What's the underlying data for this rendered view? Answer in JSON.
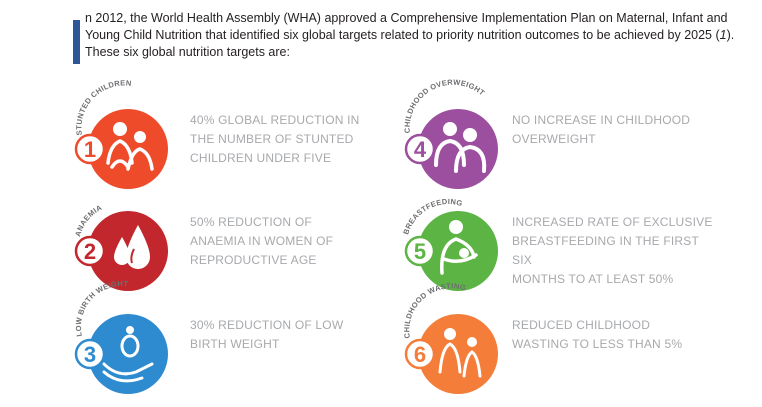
{
  "intro": {
    "text_1": "n 2012, the World Health Assembly (WHA) approved a Comprehensive Implementation Plan on Maternal, Infant and Young Child Nutrition that identified six global targets related to priority nutrition outcomes to be achieved by 2025 (",
    "ref": "1",
    "text_2": "). These six global nutrition targets are:"
  },
  "targets": [
    {
      "number": "1",
      "arc_label": "STUNTED CHILDREN",
      "icon": "children-icon",
      "color": "#ee4b2b",
      "lines": [
        "40% GLOBAL REDUCTION IN",
        "THE NUMBER OF STUNTED",
        "CHILDREN UNDER FIVE"
      ]
    },
    {
      "number": "2",
      "arc_label": "ANAEMIA",
      "icon": "blood-drops-icon",
      "color": "#c1272d",
      "lines": [
        "50% REDUCTION OF",
        "ANAEMIA IN WOMEN OF",
        "REPRODUCTIVE AGE"
      ]
    },
    {
      "number": "3",
      "arc_label": "LOW BIRTH WEIGHT",
      "icon": "baby-in-hand-icon",
      "color": "#2e8bd0",
      "lines": [
        "30% REDUCTION OF LOW",
        "BIRTH WEIGHT"
      ]
    },
    {
      "number": "4",
      "arc_label": "CHILDHOOD OVERWEIGHT",
      "icon": "overweight-children-icon",
      "color": "#9b4f9e",
      "lines": [
        "NO INCREASE IN CHILDHOOD",
        "OVERWEIGHT"
      ]
    },
    {
      "number": "5",
      "arc_label": "BREASTFEEDING",
      "icon": "breastfeeding-icon",
      "color": "#5bb443",
      "lines": [
        "INCREASED RATE OF EXCLUSIVE",
        "BREASTFEEDING IN THE FIRST SIX",
        "MONTHS TO AT LEAST 50%"
      ]
    },
    {
      "number": "6",
      "arc_label": "CHILDHOOD WASTING",
      "icon": "wasting-children-icon",
      "color": "#f47d3a",
      "lines": [
        "REDUCED CHILDHOOD",
        "WASTING TO LESS THAN 5%"
      ]
    }
  ]
}
